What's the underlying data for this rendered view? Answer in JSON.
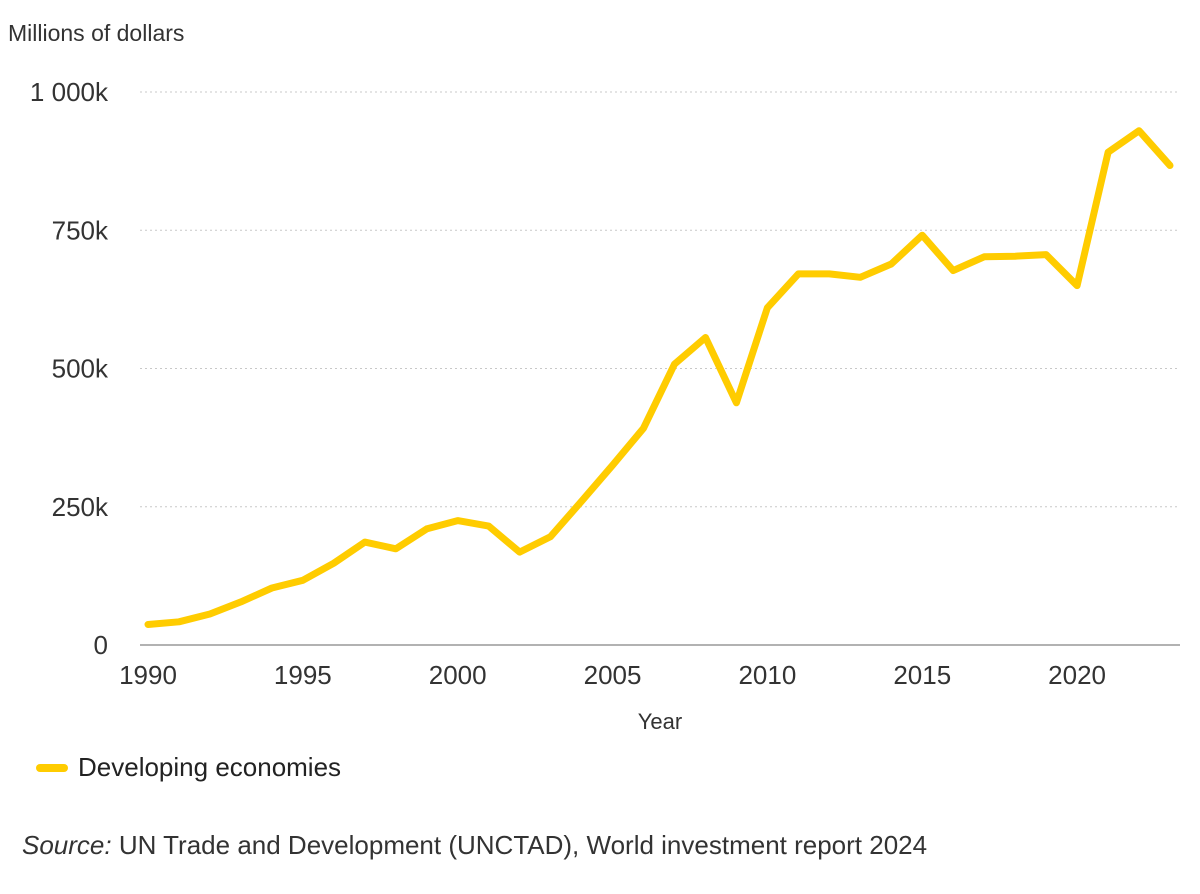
{
  "chart_data": {
    "type": "line",
    "ylabel": "Millions of dollars",
    "xlabel": "Year",
    "ylim": [
      0,
      1000000
    ],
    "xlim": [
      1990,
      2023
    ],
    "y_ticks": [
      0,
      250000,
      500000,
      750000,
      1000000
    ],
    "y_tick_labels": [
      "0",
      "250k",
      "500k",
      "750k",
      "1 000k"
    ],
    "x_ticks": [
      1990,
      1995,
      2000,
      2005,
      2010,
      2015,
      2020
    ],
    "x_tick_labels": [
      "1990",
      "1995",
      "2000",
      "2005",
      "2010",
      "2015",
      "2020"
    ],
    "grid": "horizontal dotted",
    "legend_position": "bottom-left",
    "x": [
      1990,
      1991,
      1992,
      1993,
      1994,
      1995,
      1996,
      1997,
      1998,
      1999,
      2000,
      2001,
      2002,
      2003,
      2004,
      2005,
      2006,
      2007,
      2008,
      2009,
      2010,
      2011,
      2012,
      2013,
      2014,
      2015,
      2016,
      2017,
      2018,
      2019,
      2020,
      2021,
      2022,
      2023
    ],
    "series": [
      {
        "name": "Developing economies",
        "color": "#FFCC00",
        "values": [
          37000,
          42000,
          56000,
          78000,
          103000,
          117000,
          148000,
          186000,
          174000,
          210000,
          225000,
          215000,
          168000,
          196000,
          260000,
          325000,
          392000,
          508000,
          556000,
          438000,
          610000,
          671000,
          671000,
          665000,
          689000,
          741000,
          677000,
          702000,
          703000,
          706000,
          650000,
          891000,
          930000,
          867000
        ]
      }
    ]
  },
  "source": {
    "prefix": "Source:",
    "text": " UN Trade and Development (UNCTAD), World investment report 2024"
  }
}
